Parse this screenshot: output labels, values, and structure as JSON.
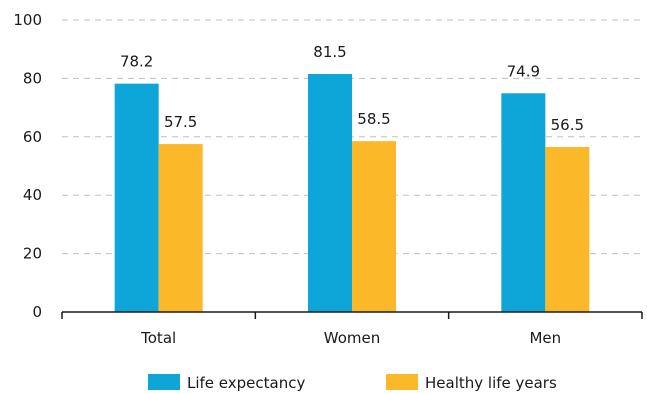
{
  "chart_data": {
    "type": "bar",
    "categories": [
      "Total",
      "Women",
      "Men"
    ],
    "series": [
      {
        "name": "Life expectancy",
        "values": [
          78.2,
          81.5,
          74.9
        ],
        "color": "#0ea5d8"
      },
      {
        "name": "Healthy life years",
        "values": [
          57.5,
          58.5,
          56.5
        ],
        "color": "#fbb829"
      }
    ],
    "ylim": [
      0,
      100
    ],
    "yticks": [
      0,
      20,
      40,
      60,
      80,
      100
    ],
    "grid": true,
    "legend": "bottom"
  }
}
